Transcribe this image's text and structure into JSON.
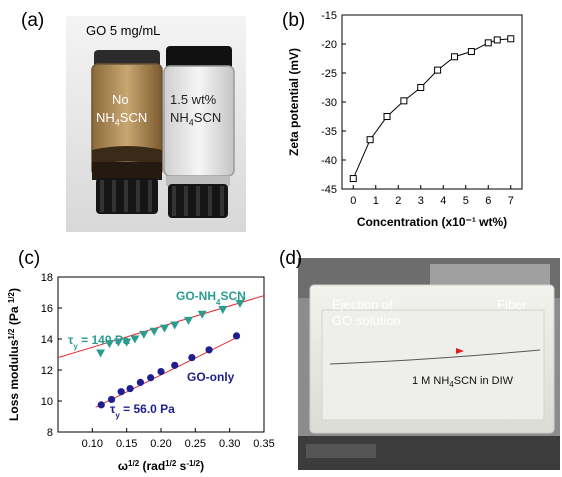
{
  "panel_a": {
    "label": "(a)",
    "header": "GO 5 mg/mL",
    "vial_left_line1": "No",
    "vial_left_line2": "NH4SCN",
    "vial_right_line1": "1.5 wt%",
    "vial_right_line2": "NH4SCN"
  },
  "panel_d": {
    "label": "(d)",
    "ejection_line1": "Ejection of",
    "ejection_line2": "GO solution",
    "fiber": "Fiber",
    "bath": "1 M NH4SCN in DIW"
  },
  "chart_data": [
    {
      "panel": "(b)",
      "type": "line",
      "xlabel": "Concentration (x10⁻¹ wt%)",
      "ylabel": "Zeta potential (mV)",
      "xlim": [
        -0.5,
        7.5
      ],
      "ylim": [
        -45,
        -15
      ],
      "xticks": [
        0,
        1,
        2,
        3,
        4,
        5,
        6,
        7
      ],
      "yticks": [
        -45,
        -40,
        -35,
        -30,
        -25,
        -20,
        -15
      ],
      "marker": "open-square",
      "x": [
        0,
        0.75,
        1.5,
        2.25,
        3.0,
        3.75,
        4.5,
        5.25,
        6.0,
        6.4,
        7.0
      ],
      "y": [
        -43.2,
        -36.5,
        -32.5,
        -29.8,
        -27.5,
        -24.5,
        -22.2,
        -21.3,
        -19.8,
        -19.3,
        -19.1
      ]
    },
    {
      "panel": "(c)",
      "type": "scatter",
      "xlabel": "ω^1/2 (rad^1/2 s^-1/2)",
      "ylabel": "Loss modulus^1/2 (Pa^1/2)",
      "xlim": [
        0.05,
        0.35
      ],
      "ylim": [
        8,
        18
      ],
      "xticks": [
        0.1,
        0.15,
        0.2,
        0.25,
        0.3,
        0.35
      ],
      "yticks": [
        8,
        10,
        12,
        14,
        16,
        18
      ],
      "series": [
        {
          "name": "GO-NH4SCN",
          "annotation": "τy = 140 Pa",
          "color": "#2a9d8f",
          "marker": "triangle-down",
          "x": [
            0.112,
            0.125,
            0.138,
            0.15,
            0.162,
            0.175,
            0.19,
            0.205,
            0.22,
            0.24,
            0.26,
            0.29,
            0.315
          ],
          "y": [
            13.1,
            13.7,
            13.8,
            13.8,
            14.0,
            14.3,
            14.5,
            14.7,
            14.9,
            15.2,
            15.6,
            15.9,
            16.3
          ],
          "fit": [
            [
              0.05,
              12.8
            ],
            [
              0.35,
              16.8
            ]
          ]
        },
        {
          "name": "GO-only",
          "annotation": "τy = 56.0 Pa",
          "color": "#1e1e90",
          "marker": "circle",
          "x": [
            0.113,
            0.128,
            0.142,
            0.155,
            0.17,
            0.185,
            0.2,
            0.22,
            0.245,
            0.27,
            0.31
          ],
          "y": [
            9.75,
            10.1,
            10.6,
            10.8,
            11.2,
            11.5,
            11.9,
            12.3,
            12.8,
            13.3,
            14.2
          ],
          "fit": [
            [
              0.105,
              9.6
            ],
            [
              0.315,
              14.2
            ]
          ]
        }
      ]
    }
  ]
}
